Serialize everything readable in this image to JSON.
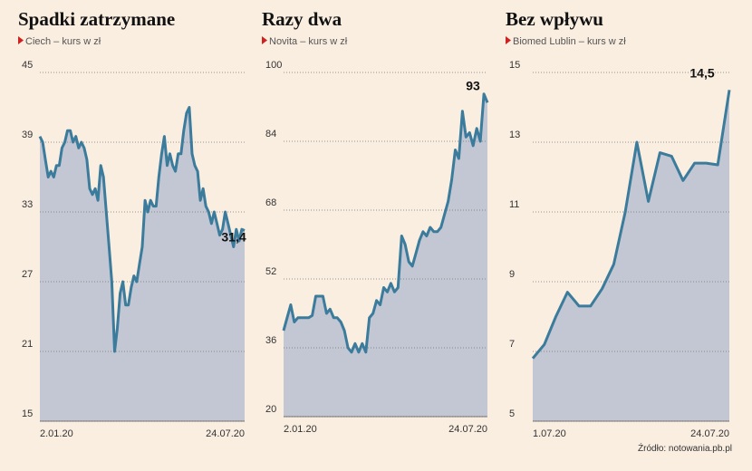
{
  "chart_data": [
    {
      "type": "area",
      "title": "Spadki zatrzymane",
      "subtitle": "Ciech – kurs w zł",
      "categories": [
        "2.01.20",
        null,
        null,
        null,
        null,
        null,
        null,
        null,
        null,
        null,
        null,
        null,
        null,
        null,
        null,
        null,
        null,
        null,
        null,
        null,
        null,
        null,
        null,
        null,
        null,
        null,
        null,
        null,
        null,
        null,
        null,
        null,
        null,
        null,
        null,
        null,
        null,
        null,
        null,
        null,
        null,
        null,
        null,
        null,
        null,
        null,
        null,
        null,
        null,
        null,
        null,
        null,
        null,
        null,
        null,
        null,
        null,
        null,
        null,
        null,
        null,
        null,
        null,
        null,
        null,
        null,
        null,
        null,
        null,
        null,
        null,
        null,
        null,
        null,
        "24.07.20"
      ],
      "values": [
        39.5,
        39,
        37.5,
        36,
        36.5,
        36,
        37,
        37,
        38.5,
        39,
        40,
        40,
        39,
        39.5,
        38.5,
        39,
        38.5,
        37.5,
        35,
        34.5,
        35,
        34,
        37,
        36,
        33,
        30,
        27,
        21,
        23,
        26,
        27,
        25,
        25,
        26.5,
        27.5,
        27,
        28.5,
        30,
        34,
        33,
        34,
        33.5,
        33.5,
        36,
        38,
        39.5,
        37,
        38,
        37,
        36.5,
        38,
        38,
        40,
        41.5,
        42,
        38,
        37,
        36.5,
        34,
        35,
        33.5,
        33,
        32,
        33,
        32,
        31,
        31.5,
        33,
        32,
        31,
        30,
        31.5,
        30.5,
        31.5,
        31.4
      ],
      "value_labels": [
        null,
        null,
        null,
        null,
        null,
        null,
        null,
        null,
        null,
        null,
        null,
        null,
        null,
        null,
        null,
        null,
        null,
        null,
        null,
        null,
        null,
        null,
        null,
        null,
        null,
        null,
        null,
        null,
        null,
        null,
        null,
        null,
        null,
        null,
        null,
        null,
        null,
        null,
        null,
        null,
        null,
        null,
        null,
        null,
        null,
        null,
        null,
        null,
        null,
        null,
        null,
        null,
        null,
        null,
        null,
        null,
        null,
        null,
        null,
        null,
        null,
        null,
        null,
        null,
        null,
        null,
        null,
        null,
        null,
        null,
        null,
        null,
        null,
        null,
        "31,4"
      ],
      "ylim": [
        15,
        45
      ],
      "yticks": [
        15,
        21,
        27,
        33,
        39,
        45
      ],
      "grid": true,
      "color": "#3b7b9c",
      "fill": "#c3c7d3"
    },
    {
      "type": "area",
      "title": "Razy dwa",
      "subtitle": "Novita – kurs w zł",
      "categories": [
        "2.01.20",
        null,
        null,
        null,
        null,
        null,
        null,
        null,
        null,
        null,
        null,
        null,
        null,
        null,
        null,
        null,
        null,
        null,
        null,
        null,
        null,
        null,
        null,
        null,
        null,
        null,
        null,
        null,
        null,
        null,
        null,
        null,
        null,
        null,
        null,
        null,
        null,
        null,
        null,
        null,
        null,
        null,
        null,
        null,
        null,
        null,
        null,
        null,
        null,
        null,
        null,
        null,
        null,
        null,
        null,
        null,
        null,
        "24.07.20"
      ],
      "values": [
        40,
        43,
        46,
        42,
        43,
        43,
        43,
        43,
        43.5,
        48,
        48,
        48,
        44,
        45,
        43,
        43,
        42,
        40,
        36,
        35,
        37,
        35,
        37,
        35,
        43,
        44,
        47,
        46,
        50,
        49,
        51,
        49,
        50,
        62,
        60,
        56,
        55,
        58,
        61,
        63,
        62,
        64,
        63,
        63,
        64,
        67,
        70,
        75,
        82,
        80,
        91,
        85,
        86,
        83,
        87,
        84,
        95,
        93
      ],
      "value_labels": [
        null,
        null,
        null,
        null,
        null,
        null,
        null,
        null,
        null,
        null,
        null,
        null,
        null,
        null,
        null,
        null,
        null,
        null,
        null,
        null,
        null,
        null,
        null,
        null,
        null,
        null,
        null,
        null,
        null,
        null,
        null,
        null,
        null,
        null,
        null,
        null,
        null,
        null,
        null,
        null,
        null,
        null,
        null,
        null,
        null,
        null,
        null,
        null,
        null,
        null,
        null,
        null,
        null,
        null,
        null,
        null,
        null,
        "93"
      ],
      "ylim": [
        20,
        100
      ],
      "yticks": [
        20,
        36,
        52,
        68,
        84,
        100
      ],
      "grid": true,
      "color": "#3b7b9c",
      "fill": "#c3c7d3"
    },
    {
      "type": "area",
      "title": "Bez wpływu",
      "subtitle": "Biomed Lublin – kurs w zł",
      "categories": [
        "1.07.20",
        null,
        null,
        null,
        null,
        null,
        null,
        null,
        null,
        null,
        null,
        null,
        null,
        null,
        null,
        null,
        null,
        "24.07.20"
      ],
      "values": [
        6.8,
        7.2,
        8,
        8.7,
        8.3,
        8.3,
        8.8,
        9.5,
        11,
        13,
        11.3,
        12.7,
        12.6,
        11.9,
        12.4,
        12.4,
        12.35,
        14.5
      ],
      "value_labels": [
        null,
        null,
        null,
        null,
        null,
        null,
        null,
        null,
        null,
        null,
        null,
        null,
        null,
        null,
        null,
        null,
        null,
        "14,5"
      ],
      "ylim": [
        5,
        15
      ],
      "yticks": [
        5,
        7,
        9,
        11,
        13,
        15
      ],
      "grid": true,
      "color": "#3b7b9c",
      "fill": "#c3c7d3"
    }
  ],
  "source": "Źródło: notowania.pb.pl"
}
